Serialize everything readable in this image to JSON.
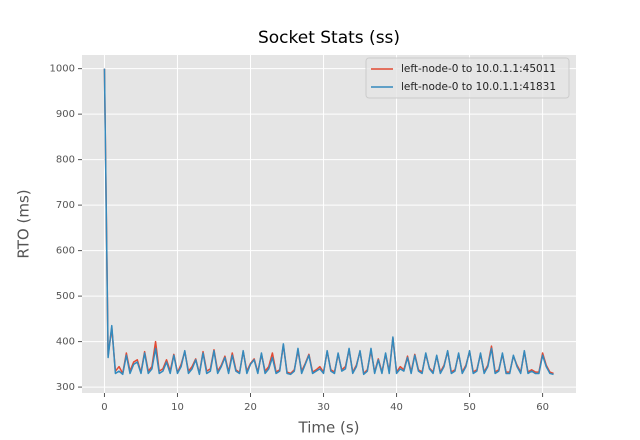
{
  "chart_data": {
    "type": "line",
    "title": "Socket Stats (ss)",
    "x_label": "Time (s)",
    "y_label": "RTO (ms)",
    "x": [
      0,
      0.5,
      1,
      1.5,
      2,
      2.5,
      3,
      3.5,
      4,
      4.5,
      5,
      5.5,
      6,
      6.5,
      7,
      7.5,
      8,
      8.5,
      9,
      9.5,
      10,
      10.5,
      11,
      11.5,
      12,
      12.5,
      13,
      13.5,
      14,
      14.5,
      15,
      15.5,
      16,
      16.5,
      17,
      17.5,
      18,
      18.5,
      19,
      19.5,
      20,
      20.5,
      21,
      21.5,
      22,
      22.5,
      23,
      23.5,
      24,
      24.5,
      25,
      25.5,
      26,
      26.5,
      27,
      27.5,
      28,
      28.5,
      29,
      29.5,
      30,
      30.5,
      31,
      31.5,
      32,
      32.5,
      33,
      33.5,
      34,
      34.5,
      35,
      35.5,
      36,
      36.5,
      37,
      37.5,
      38,
      38.5,
      39,
      39.5,
      40,
      40.5,
      41,
      41.5,
      42,
      42.5,
      43,
      43.5,
      44,
      44.5,
      45,
      45.5,
      46,
      46.5,
      47,
      47.5,
      48,
      48.5,
      49,
      49.5,
      50,
      50.5,
      51,
      51.5,
      52,
      52.5,
      53,
      53.5,
      54,
      54.5,
      55,
      55.5,
      56,
      56.5,
      57,
      57.5,
      58,
      58.5,
      59,
      59.5,
      60,
      60.5,
      61,
      61.5
    ],
    "series": [
      {
        "name": "left-node-0 to 10.0.1.1:45011",
        "color": "#E24A33",
        "values": [
          1000,
          370,
          430,
          335,
          345,
          330,
          375,
          335,
          355,
          360,
          332,
          378,
          335,
          345,
          400,
          335,
          340,
          360,
          335,
          372,
          332,
          350,
          378,
          335,
          345,
          362,
          330,
          378,
          335,
          340,
          382,
          335,
          348,
          368,
          333,
          375,
          338,
          332,
          378,
          335,
          352,
          362,
          333,
          372,
          335,
          345,
          375,
          333,
          338,
          392,
          333,
          330,
          338,
          380,
          335,
          352,
          372,
          333,
          338,
          345,
          333,
          378,
          338,
          333,
          372,
          338,
          345,
          382,
          333,
          348,
          378,
          330,
          338,
          380,
          333,
          362,
          333,
          372,
          335,
          408,
          333,
          345,
          338,
          368,
          333,
          372,
          338,
          333,
          372,
          342,
          333,
          368,
          333,
          348,
          378,
          333,
          338,
          372,
          333,
          348,
          378,
          333,
          338,
          372,
          333,
          348,
          390,
          333,
          338,
          372,
          333,
          333,
          368,
          348,
          333,
          378,
          333,
          338,
          333,
          333,
          375,
          348,
          333,
          330
        ]
      },
      {
        "name": "left-node-0 to 10.0.1.1:41831",
        "color": "#348ABD",
        "values": [
          1000,
          365,
          435,
          330,
          335,
          328,
          370,
          330,
          350,
          355,
          330,
          375,
          330,
          340,
          385,
          330,
          335,
          355,
          330,
          370,
          330,
          345,
          380,
          330,
          340,
          360,
          328,
          375,
          330,
          335,
          380,
          330,
          345,
          365,
          330,
          370,
          335,
          330,
          380,
          330,
          350,
          360,
          330,
          375,
          330,
          340,
          365,
          330,
          335,
          395,
          330,
          328,
          335,
          385,
          330,
          350,
          370,
          330,
          335,
          340,
          330,
          380,
          335,
          330,
          375,
          335,
          340,
          385,
          330,
          345,
          380,
          328,
          335,
          385,
          330,
          360,
          330,
          375,
          330,
          410,
          330,
          340,
          335,
          365,
          330,
          370,
          335,
          330,
          375,
          340,
          330,
          370,
          330,
          345,
          380,
          330,
          335,
          375,
          330,
          345,
          380,
          330,
          335,
          375,
          330,
          345,
          385,
          330,
          335,
          375,
          330,
          330,
          370,
          345,
          330,
          380,
          330,
          335,
          330,
          330,
          370,
          345,
          330,
          328
        ]
      }
    ],
    "xlim": [
      -3.075,
      64.575
    ],
    "ylim": [
      287,
      1030
    ],
    "xticks": [
      0,
      10,
      20,
      30,
      40,
      50,
      60
    ],
    "yticks": [
      300,
      400,
      500,
      600,
      700,
      800,
      900,
      1000
    ],
    "grid": true,
    "legend": "upper right"
  }
}
